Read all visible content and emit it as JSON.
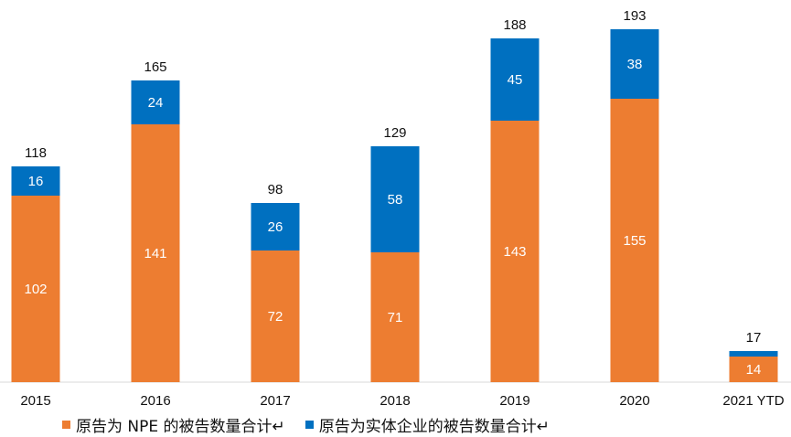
{
  "chart_data": {
    "type": "bar",
    "stacked": true,
    "categories": [
      "2015",
      "2016",
      "2017",
      "2018",
      "2019",
      "2020",
      "2021 YTD"
    ],
    "series": [
      {
        "name": "原告为 NPE 的被告数量合计↵",
        "color": "#ED7D31",
        "values": [
          102,
          141,
          72,
          71,
          143,
          155,
          14
        ]
      },
      {
        "name": "原告为实体企业的被告数量合计↵",
        "color": "#0070C0",
        "values": [
          16,
          24,
          26,
          58,
          45,
          38,
          3
        ]
      }
    ],
    "totals": [
      118,
      165,
      98,
      129,
      188,
      193,
      17
    ],
    "ylim": [
      0,
      195
    ],
    "grid": false,
    "legend_position": "bottom-left"
  }
}
